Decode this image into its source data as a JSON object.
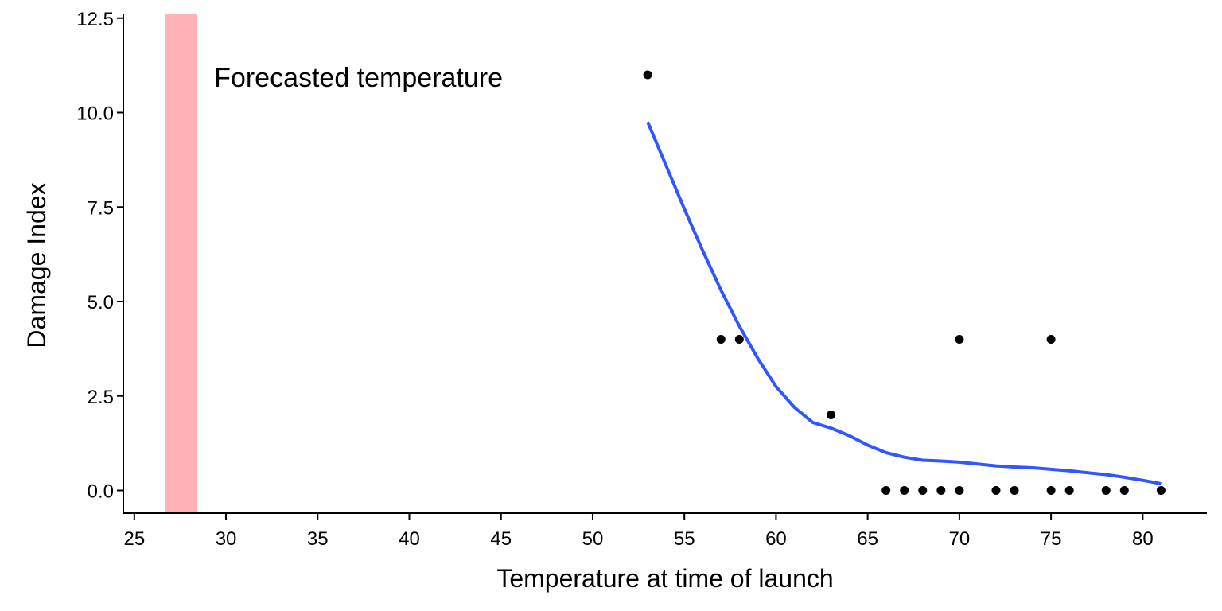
{
  "chart_data": {
    "type": "scatter",
    "title": "",
    "xlabel": "Temperature at time of launch",
    "ylabel": "Damage Index",
    "xlim": [
      24.4,
      83.5
    ],
    "ylim": [
      -0.6,
      12.6
    ],
    "x_ticks": [
      25,
      30,
      35,
      40,
      45,
      50,
      55,
      60,
      65,
      70,
      75,
      80
    ],
    "x_tick_labels": [
      "25",
      "30",
      "35",
      "40",
      "45",
      "50",
      "55",
      "60",
      "65",
      "70",
      "75",
      "80"
    ],
    "y_ticks": [
      0,
      2.5,
      5,
      7.5,
      10,
      12.5
    ],
    "y_tick_labels": [
      "0.0",
      "2.5",
      "5.0",
      "7.5",
      "10.0",
      "12.5"
    ],
    "grid": false,
    "legend": "none",
    "highlight_band": {
      "x_from": 26.7,
      "x_to": 28.4,
      "color": "#ffb3b5",
      "label": "Forecasted temperature"
    },
    "series": [
      {
        "type": "scatter",
        "color": "#000000",
        "points": [
          {
            "x": 53,
            "y": 11
          },
          {
            "x": 57,
            "y": 4
          },
          {
            "x": 58,
            "y": 4
          },
          {
            "x": 63,
            "y": 2
          },
          {
            "x": 66,
            "y": 0
          },
          {
            "x": 67,
            "y": 0
          },
          {
            "x": 68,
            "y": 0
          },
          {
            "x": 69,
            "y": 0
          },
          {
            "x": 70,
            "y": 0
          },
          {
            "x": 70,
            "y": 4
          },
          {
            "x": 72,
            "y": 0
          },
          {
            "x": 73,
            "y": 0
          },
          {
            "x": 75,
            "y": 0
          },
          {
            "x": 75,
            "y": 4
          },
          {
            "x": 76,
            "y": 0
          },
          {
            "x": 78,
            "y": 0
          },
          {
            "x": 79,
            "y": 0
          },
          {
            "x": 81,
            "y": 0
          }
        ]
      },
      {
        "type": "line",
        "color": "#3355ff",
        "points": [
          {
            "x": 53,
            "y": 9.75
          },
          {
            "x": 54,
            "y": 8.6
          },
          {
            "x": 55,
            "y": 7.45
          },
          {
            "x": 56,
            "y": 6.35
          },
          {
            "x": 57,
            "y": 5.3
          },
          {
            "x": 58,
            "y": 4.35
          },
          {
            "x": 59,
            "y": 3.5
          },
          {
            "x": 60,
            "y": 2.75
          },
          {
            "x": 61,
            "y": 2.2
          },
          {
            "x": 62,
            "y": 1.8
          },
          {
            "x": 63,
            "y": 1.65
          },
          {
            "x": 64,
            "y": 1.45
          },
          {
            "x": 65,
            "y": 1.2
          },
          {
            "x": 66,
            "y": 1.0
          },
          {
            "x": 67,
            "y": 0.88
          },
          {
            "x": 68,
            "y": 0.8
          },
          {
            "x": 69,
            "y": 0.78
          },
          {
            "x": 70,
            "y": 0.75
          },
          {
            "x": 71,
            "y": 0.7
          },
          {
            "x": 72,
            "y": 0.65
          },
          {
            "x": 73,
            "y": 0.62
          },
          {
            "x": 74,
            "y": 0.6
          },
          {
            "x": 75,
            "y": 0.56
          },
          {
            "x": 76,
            "y": 0.52
          },
          {
            "x": 77,
            "y": 0.47
          },
          {
            "x": 78,
            "y": 0.42
          },
          {
            "x": 79,
            "y": 0.35
          },
          {
            "x": 80,
            "y": 0.27
          },
          {
            "x": 81,
            "y": 0.18
          }
        ]
      }
    ]
  }
}
